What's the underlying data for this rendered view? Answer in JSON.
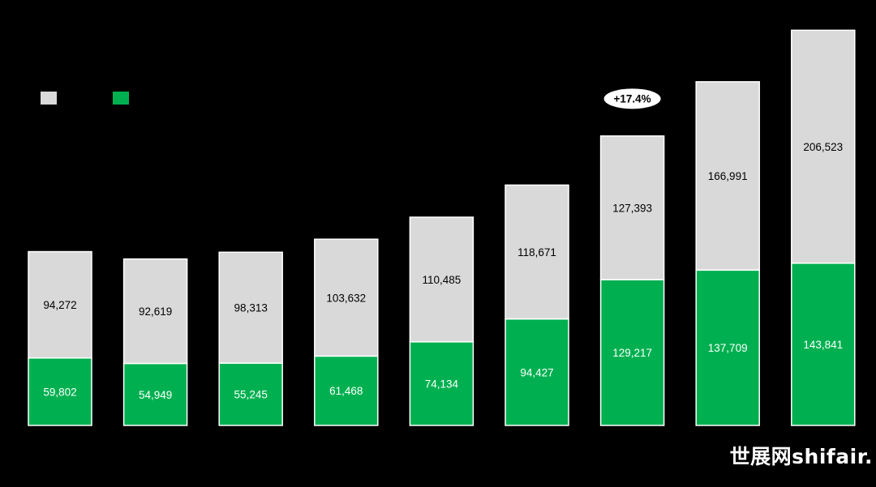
{
  "chart_data": {
    "type": "bar",
    "stacked": true,
    "series": [
      {
        "values": [
          59802,
          54949,
          55245,
          61468,
          74134,
          94427,
          129217,
          137709,
          143841
        ],
        "color": "#00b050",
        "label_color": "#ffffff"
      },
      {
        "values": [
          94272,
          92619,
          98313,
          103632,
          110485,
          118671,
          127393,
          166991,
          206523
        ],
        "color": "#d9d9d9",
        "label_color": "#000000"
      }
    ],
    "data_labels": {
      "bottom": [
        "59,802",
        "54,949",
        "55,245",
        "61,468",
        "74,134",
        "94,427",
        "129,217",
        "137,709",
        "143,841"
      ],
      "top": [
        "94,272",
        "92,619",
        "98,313",
        "103,632",
        "110,485",
        "118,671",
        "127,393",
        "166,991",
        "206,523"
      ]
    },
    "annotations": [
      {
        "text": "+17.4%",
        "category_index": 6
      }
    ],
    "ylim": [
      0,
      370000
    ],
    "grid": false,
    "legend": {
      "placement": "top-left"
    }
  },
  "watermark": "世展网shifair."
}
